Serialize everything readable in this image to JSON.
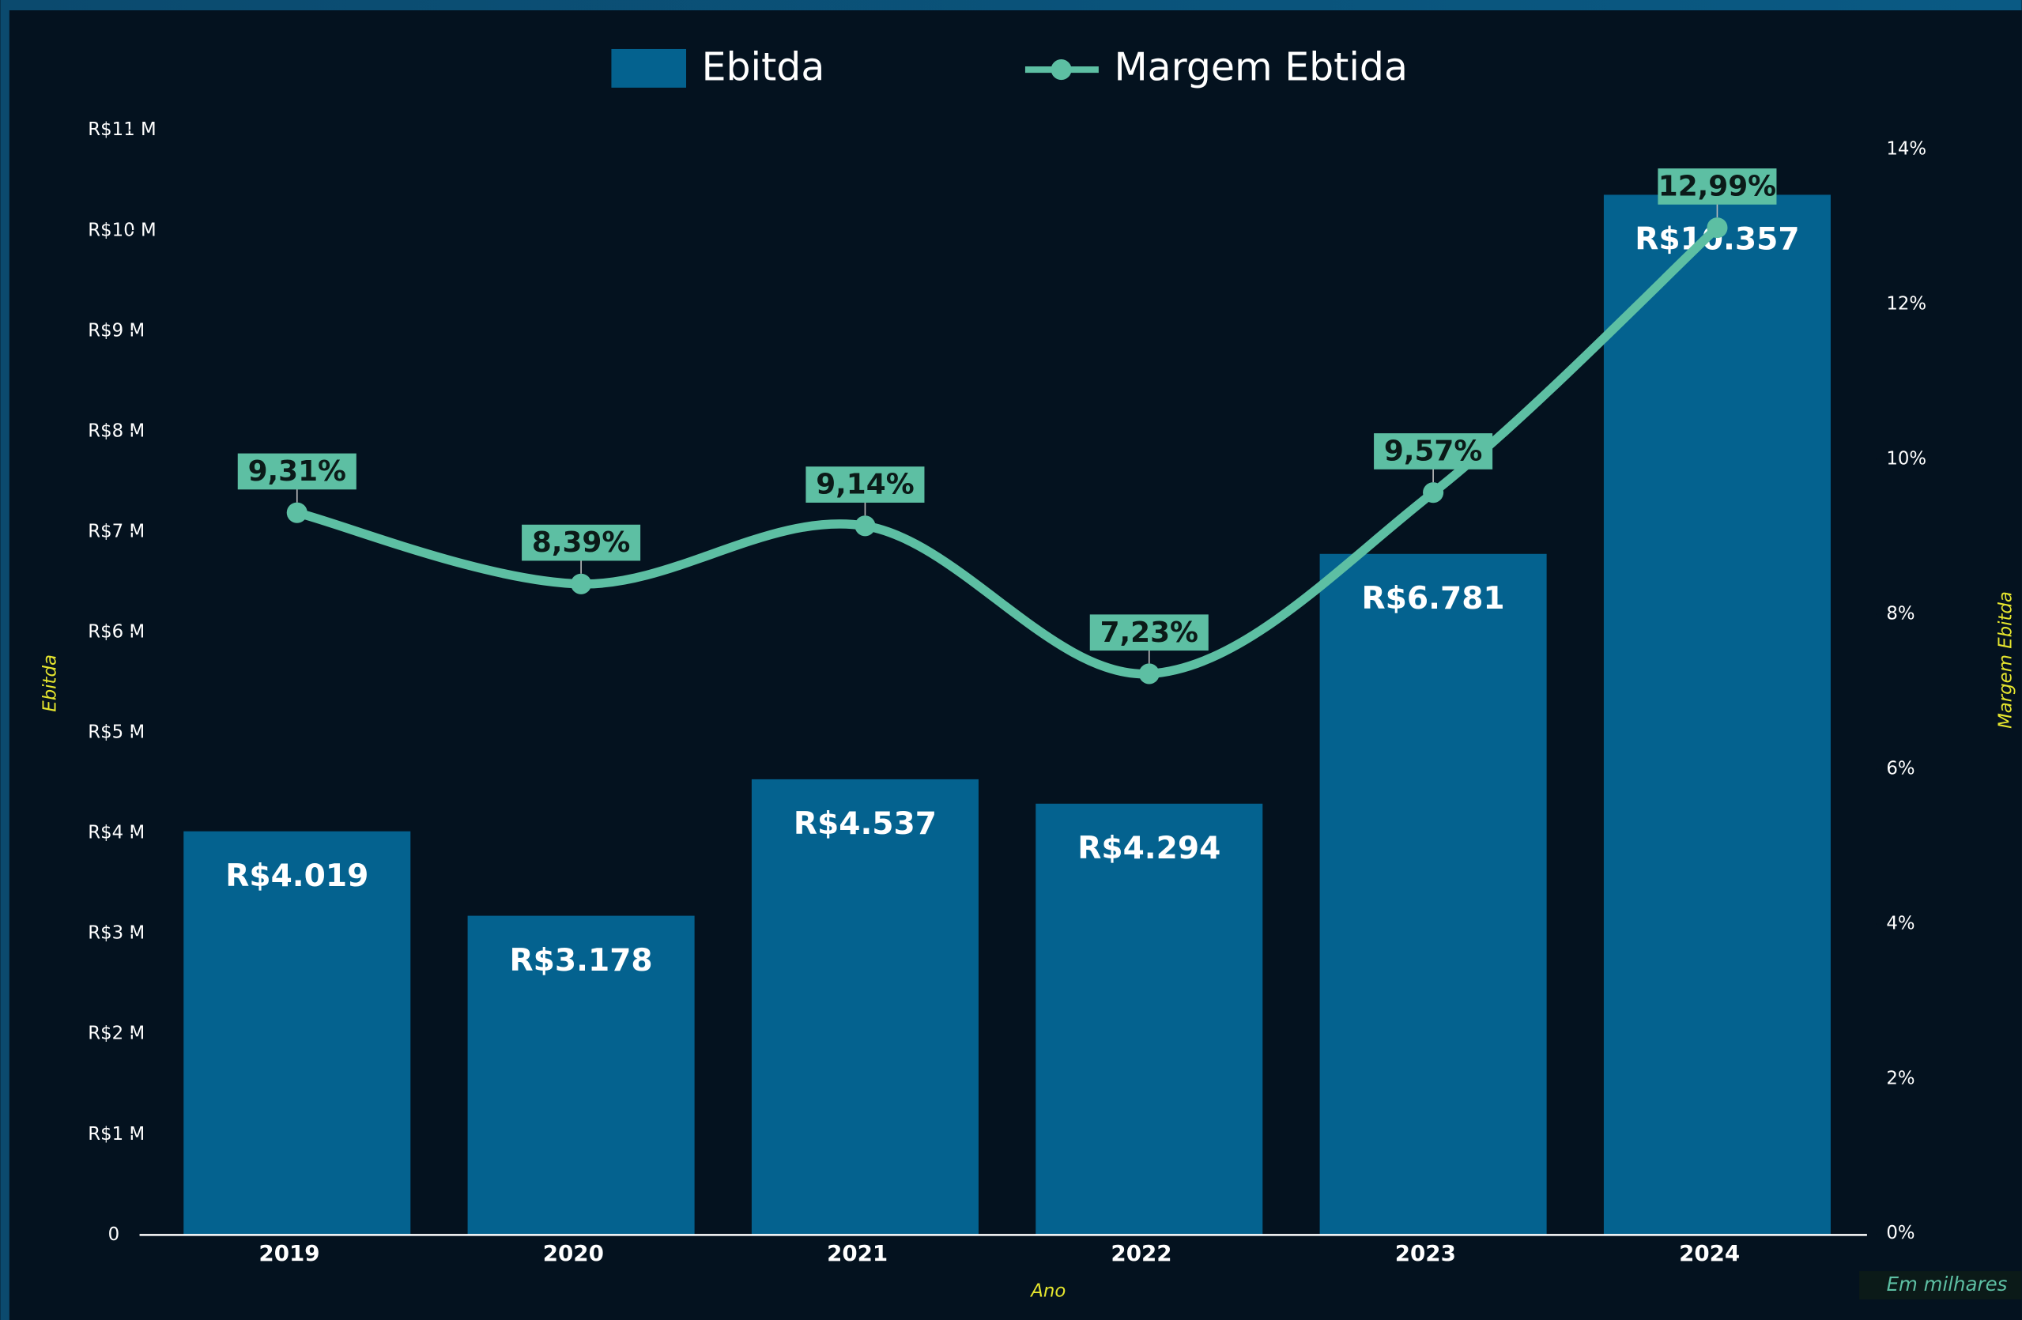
{
  "chart_data": {
    "type": "bar_line",
    "categories": [
      "2019",
      "2020",
      "2021",
      "2022",
      "2023",
      "2024"
    ],
    "series": [
      {
        "name": "Ebitda",
        "type": "bar",
        "color": "#04628f",
        "values": [
          4.019,
          3.178,
          4.537,
          4.294,
          6.781,
          10.357
        ],
        "value_labels": [
          "R$4.019",
          "R$3.178",
          "R$4.537",
          "R$4.294",
          "R$6.781",
          "R$10.357"
        ]
      },
      {
        "name": "Margem Ebtida",
        "type": "line",
        "axis": "y2",
        "color": "#5dbfa3",
        "values": [
          9.31,
          8.39,
          9.14,
          7.23,
          9.57,
          12.99
        ],
        "value_labels": [
          "9,31%",
          "8,39%",
          "9,14%",
          "7,23%",
          "9,57%",
          "12,99%"
        ]
      }
    ],
    "ylim": [
      0,
      11
    ],
    "yticks": [
      0,
      {
        "value": 1,
        "label": "R$1 M"
      },
      {
        "value": 2,
        "label": "R$2 M"
      },
      {
        "value": 3,
        "label": "R$3 M"
      },
      {
        "value": 4,
        "label": "R$4 M"
      },
      {
        "value": 5,
        "label": "R$5 M"
      },
      {
        "value": 6,
        "label": "R$6 M"
      },
      {
        "value": 7,
        "label": "R$7 M"
      },
      {
        "value": 8,
        "label": "R$8 M"
      },
      {
        "value": 9,
        "label": "R$9 M"
      },
      {
        "value": 10,
        "label": "R$10 M"
      },
      {
        "value": 11,
        "label": "R$11 M"
      }
    ],
    "y2lim": [
      0,
      14
    ],
    "y2ticks": [
      {
        "value": 0,
        "label": "0%"
      },
      {
        "value": 2,
        "label": "2%"
      },
      {
        "value": 4,
        "label": "4%"
      },
      {
        "value": 6,
        "label": "6%"
      },
      {
        "value": 8,
        "label": "8%"
      },
      {
        "value": 10,
        "label": "10%"
      },
      {
        "value": 12,
        "label": "12%"
      },
      {
        "value": 14,
        "label": "14%"
      }
    ],
    "y_label": "Ebitda",
    "y2_label": "Margem Ebitda",
    "x_label": "Ano",
    "annotation": "Em milhares",
    "legend": "top",
    "grid": false
  }
}
